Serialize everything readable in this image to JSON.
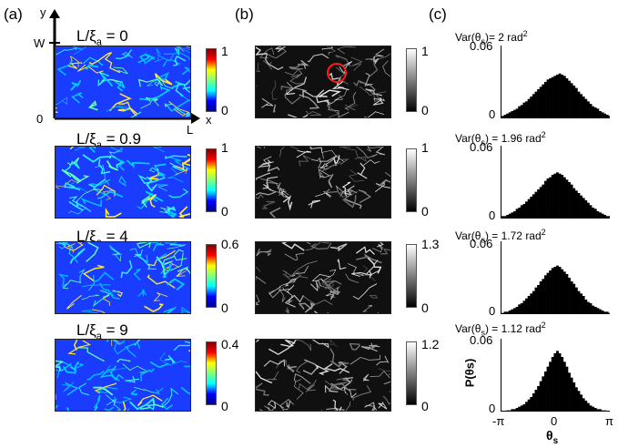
{
  "panels": {
    "a": "(a)",
    "b": "(b)",
    "c": "(c)"
  },
  "axes_a": {
    "y": "y",
    "x": "x",
    "w": "W",
    "l": "L",
    "origin": "0"
  },
  "rows": [
    {
      "title_pre": "L/ξ",
      "title_sub": "a",
      "title_post": " = 0",
      "cb_a_max": "1",
      "cb_a_min": "0",
      "cb_b_max": "1",
      "cb_b_min": "0",
      "var_pre": "Var(θ",
      "var_sub": "s",
      "var_mid": ")= 2 rad",
      "var_sup": "2",
      "ymax": "0.06",
      "ymin": "0"
    },
    {
      "title_pre": "L/ξ",
      "title_sub": "a",
      "title_post": " = 0.9",
      "cb_a_max": "1",
      "cb_a_min": "0",
      "cb_b_max": "1",
      "cb_b_min": "0",
      "var_pre": "Var(θ",
      "var_sub": "s",
      "var_mid": ") = 1.96 rad",
      "var_sup": "2",
      "ymax": "0.06",
      "ymin": "0"
    },
    {
      "title_pre": "L/ξ",
      "title_sub": "a",
      "title_post": " = 4",
      "cb_a_max": "0.6",
      "cb_a_min": "0",
      "cb_b_max": "1.3",
      "cb_b_min": "0",
      "var_pre": "Var(θ",
      "var_sub": "s",
      "var_mid": ") = 1.72 rad",
      "var_sup": "2",
      "ymax": "0.06",
      "ymin": "0"
    },
    {
      "title_pre": "L/ξ",
      "title_sub": "a",
      "title_post": " = 9",
      "cb_a_max": "0.4",
      "cb_a_min": "0",
      "cb_b_max": "1.2",
      "cb_b_min": "0",
      "var_pre": "Var(θ",
      "var_sub": "s",
      "var_mid": ") = 1.12 rad",
      "var_sup": "2",
      "ymax": "0.06",
      "ymin": "0"
    }
  ],
  "hist_axes": {
    "ylabel": "P(θs)",
    "xlabel_pre": "θ",
    "xlabel_sub": "s",
    "xticks": [
      "-π",
      "0",
      "π"
    ]
  },
  "chart_data": [
    {
      "type": "bar",
      "title": "Var(θs)= 2 rad2",
      "ylim": [
        0,
        0.06
      ],
      "xlim": [
        -3.1416,
        3.1416
      ],
      "xlabel": "θs",
      "ylabel": "P(θs)",
      "values": [
        0.002,
        0.003,
        0.004,
        0.005,
        0.006,
        0.007,
        0.008,
        0.01,
        0.011,
        0.013,
        0.014,
        0.016,
        0.018,
        0.02,
        0.022,
        0.024,
        0.026,
        0.028,
        0.03,
        0.032,
        0.033,
        0.034,
        0.035,
        0.036,
        0.037,
        0.036,
        0.035,
        0.033,
        0.031,
        0.029,
        0.027,
        0.025,
        0.022,
        0.02,
        0.018,
        0.016,
        0.014,
        0.012,
        0.01,
        0.009,
        0.008,
        0.006,
        0.005,
        0.004,
        0.003,
        0.002
      ]
    },
    {
      "type": "bar",
      "title": "Var(θs) = 1.96 rad2",
      "ylim": [
        0,
        0.06
      ],
      "xlim": [
        -3.1416,
        3.1416
      ],
      "xlabel": "θs",
      "ylabel": "P(θs)",
      "values": [
        0.002,
        0.002,
        0.003,
        0.004,
        0.005,
        0.006,
        0.008,
        0.009,
        0.011,
        0.012,
        0.014,
        0.016,
        0.018,
        0.02,
        0.022,
        0.024,
        0.026,
        0.028,
        0.031,
        0.033,
        0.034,
        0.036,
        0.037,
        0.038,
        0.037,
        0.036,
        0.034,
        0.032,
        0.03,
        0.028,
        0.025,
        0.023,
        0.021,
        0.019,
        0.017,
        0.015,
        0.013,
        0.011,
        0.009,
        0.008,
        0.006,
        0.005,
        0.004,
        0.003,
        0.002,
        0.002
      ]
    },
    {
      "type": "bar",
      "title": "Var(θs) = 1.72 rad2",
      "ylim": [
        0,
        0.06
      ],
      "xlim": [
        -3.1416,
        3.1416
      ],
      "xlabel": "θs",
      "ylabel": "P(θs)",
      "values": [
        0.001,
        0.002,
        0.002,
        0.003,
        0.004,
        0.005,
        0.006,
        0.008,
        0.009,
        0.011,
        0.013,
        0.015,
        0.017,
        0.019,
        0.022,
        0.024,
        0.027,
        0.029,
        0.032,
        0.034,
        0.036,
        0.038,
        0.039,
        0.04,
        0.039,
        0.037,
        0.035,
        0.033,
        0.03,
        0.027,
        0.025,
        0.022,
        0.019,
        0.017,
        0.015,
        0.012,
        0.01,
        0.009,
        0.007,
        0.006,
        0.005,
        0.004,
        0.003,
        0.002,
        0.002,
        0.001
      ]
    },
    {
      "type": "bar",
      "title": "Var(θs) = 1.12 rad2",
      "ylim": [
        0,
        0.06
      ],
      "xlim": [
        -3.1416,
        3.1416
      ],
      "xlabel": "θs",
      "ylabel": "P(θs)",
      "values": [
        0.0,
        0.0,
        0.001,
        0.001,
        0.002,
        0.002,
        0.003,
        0.004,
        0.005,
        0.006,
        0.008,
        0.01,
        0.012,
        0.015,
        0.018,
        0.021,
        0.025,
        0.029,
        0.033,
        0.037,
        0.041,
        0.045,
        0.048,
        0.05,
        0.048,
        0.045,
        0.041,
        0.037,
        0.032,
        0.028,
        0.024,
        0.02,
        0.017,
        0.014,
        0.011,
        0.009,
        0.007,
        0.005,
        0.004,
        0.003,
        0.002,
        0.002,
        0.001,
        0.001,
        0.0,
        0.0
      ]
    }
  ]
}
